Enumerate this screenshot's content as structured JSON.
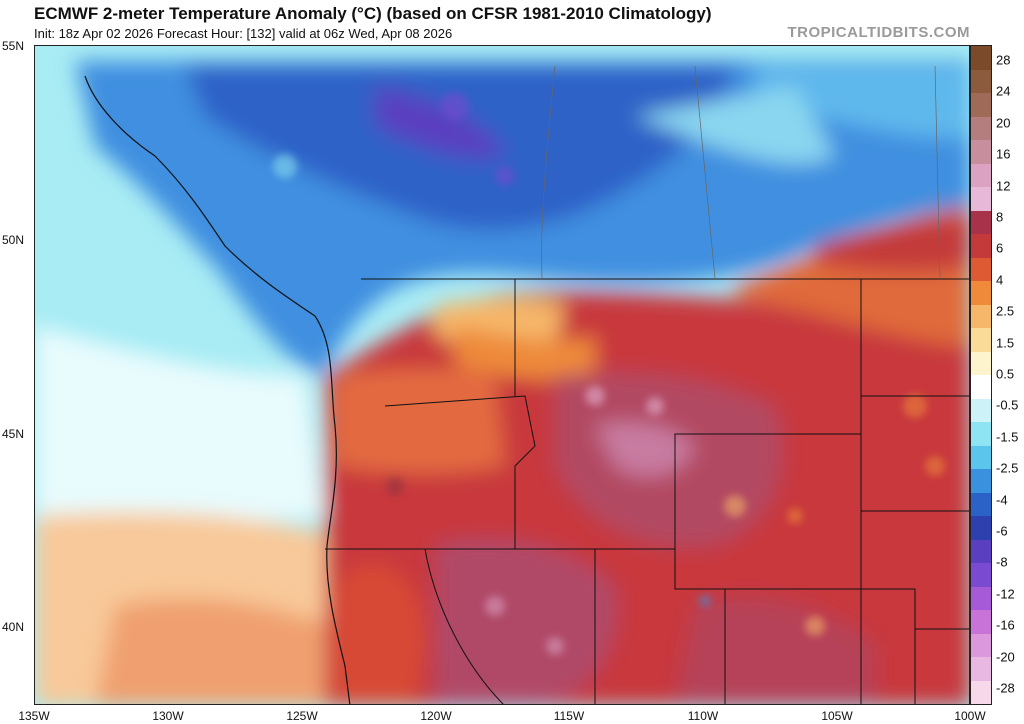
{
  "header": {
    "title": "ECMWF 2-meter Temperature Anomaly (°C) (based on CFSR 1981-2010 Climatology)",
    "subtitle": "Init: 18z Apr 02 2026   Forecast Hour: [132]   valid at 06z Wed, Apr 08 2026",
    "brand": "TROPICALTIDBITS.COM"
  },
  "map": {
    "region": "Pacific Northwest / Western US & Canada",
    "lat_labels": [
      "55N",
      "50N",
      "45N",
      "40N"
    ],
    "lon_labels": [
      "135W",
      "130W",
      "125W",
      "120W",
      "115W",
      "110W",
      "105W",
      "100W"
    ]
  },
  "colorbar": {
    "labels": [
      "28",
      "24",
      "20",
      "16",
      "12",
      "8",
      "6",
      "4",
      "2.5",
      "1.5",
      "0.5",
      "-0.5",
      "-1.5",
      "-2.5",
      "-4",
      "-6",
      "-8",
      "-12",
      "-16",
      "-20",
      "-28"
    ],
    "colors": [
      "#7a4a2a",
      "#8c5a3c",
      "#a06a58",
      "#b47e7e",
      "#c78f9e",
      "#dca2c2",
      "#e8b8d8",
      "#a8324a",
      "#c43a3a",
      "#de5a32",
      "#ee8a3a",
      "#f6b76a",
      "#fadc98",
      "#fdf3cc",
      "#ffffff",
      "#cdf3f8",
      "#8ee4f2",
      "#5bc5ec",
      "#3a92df",
      "#2a62c8",
      "#2e3fae",
      "#5a3fc0",
      "#7a4ad0",
      "#a65ad8",
      "#c873d8",
      "#dc98dc",
      "#e8b8e2",
      "#f6d8ea"
    ],
    "accent_colors": {
      "warm": "#c43a3a",
      "cold": "#2a62c8"
    }
  }
}
